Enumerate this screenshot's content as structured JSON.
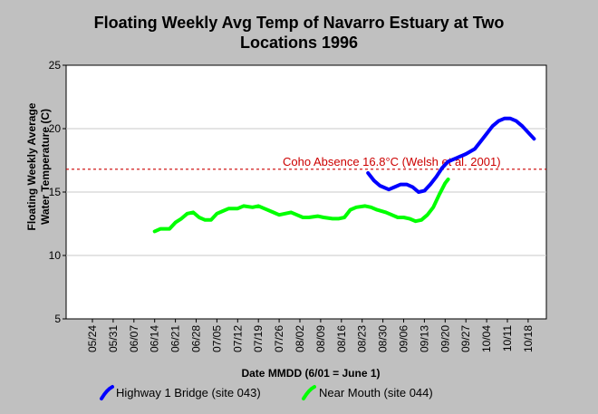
{
  "chart_data": {
    "type": "line",
    "title_lines": [
      "Floating Weekly Avg Temp of Navarro Estuary at Two",
      "Locations 1996"
    ],
    "xlabel": "Date MMDD (6/01 = June 1)",
    "ylabel_lines": [
      "Floating Weekly Average",
      "Water Temperature (C)"
    ],
    "ylim": [
      5,
      25
    ],
    "y_ticks": [
      5,
      10,
      15,
      20,
      25
    ],
    "x_tick_labels": [
      "05/24",
      "05/31",
      "06/07",
      "06/14",
      "06/21",
      "06/28",
      "07/05",
      "07/12",
      "07/19",
      "07/26",
      "08/02",
      "08/09",
      "08/16",
      "08/23",
      "08/30",
      "09/06",
      "09/13",
      "09/20",
      "09/27",
      "10/04",
      "10/11",
      "10/18"
    ],
    "threshold": {
      "value": 16.8,
      "label": "Coho Absence 16.8°C (Welsh et al. 2001)",
      "color": "#cc0000"
    },
    "series": [
      {
        "name": "Highway 1 Bridge (site 043)",
        "color": "#0000ff",
        "points": [
          [
            "08/25",
            16.5
          ],
          [
            "08/27",
            15.9
          ],
          [
            "08/29",
            15.5
          ],
          [
            "09/01",
            15.2
          ],
          [
            "09/03",
            15.4
          ],
          [
            "09/05",
            15.6
          ],
          [
            "09/07",
            15.6
          ],
          [
            "09/09",
            15.4
          ],
          [
            "09/11",
            15.0
          ],
          [
            "09/13",
            15.1
          ],
          [
            "09/15",
            15.6
          ],
          [
            "09/17",
            16.2
          ],
          [
            "09/19",
            16.9
          ],
          [
            "09/21",
            17.4
          ],
          [
            "09/24",
            17.7
          ],
          [
            "09/27",
            18.0
          ],
          [
            "09/30",
            18.4
          ],
          [
            "10/02",
            19.0
          ],
          [
            "10/04",
            19.6
          ],
          [
            "10/06",
            20.2
          ],
          [
            "10/08",
            20.6
          ],
          [
            "10/10",
            20.8
          ],
          [
            "10/12",
            20.8
          ],
          [
            "10/14",
            20.6
          ],
          [
            "10/16",
            20.2
          ],
          [
            "10/18",
            19.7
          ],
          [
            "10/20",
            19.2
          ]
        ]
      },
      {
        "name": "Near Mouth (site 044)",
        "color": "#00ff00",
        "points": [
          [
            "06/14",
            11.9
          ],
          [
            "06/16",
            12.1
          ],
          [
            "06/19",
            12.1
          ],
          [
            "06/21",
            12.6
          ],
          [
            "06/23",
            12.9
          ],
          [
            "06/25",
            13.3
          ],
          [
            "06/27",
            13.4
          ],
          [
            "06/29",
            13.0
          ],
          [
            "07/01",
            12.8
          ],
          [
            "07/03",
            12.8
          ],
          [
            "07/05",
            13.3
          ],
          [
            "07/07",
            13.5
          ],
          [
            "07/09",
            13.7
          ],
          [
            "07/12",
            13.7
          ],
          [
            "07/14",
            13.9
          ],
          [
            "07/17",
            13.8
          ],
          [
            "07/19",
            13.9
          ],
          [
            "07/21",
            13.7
          ],
          [
            "07/24",
            13.4
          ],
          [
            "07/26",
            13.2
          ],
          [
            "07/28",
            13.3
          ],
          [
            "07/30",
            13.4
          ],
          [
            "08/01",
            13.2
          ],
          [
            "08/03",
            13.0
          ],
          [
            "08/05",
            13.0
          ],
          [
            "08/08",
            13.1
          ],
          [
            "08/10",
            13.0
          ],
          [
            "08/13",
            12.9
          ],
          [
            "08/15",
            12.9
          ],
          [
            "08/17",
            13.0
          ],
          [
            "08/19",
            13.6
          ],
          [
            "08/21",
            13.8
          ],
          [
            "08/24",
            13.9
          ],
          [
            "08/26",
            13.8
          ],
          [
            "08/28",
            13.6
          ],
          [
            "08/31",
            13.4
          ],
          [
            "09/02",
            13.2
          ],
          [
            "09/04",
            13.0
          ],
          [
            "09/06",
            13.0
          ],
          [
            "09/08",
            12.9
          ],
          [
            "09/10",
            12.7
          ],
          [
            "09/12",
            12.8
          ],
          [
            "09/14",
            13.2
          ],
          [
            "09/16",
            13.8
          ],
          [
            "09/18",
            14.8
          ],
          [
            "09/20",
            15.7
          ],
          [
            "09/21",
            16.0
          ]
        ]
      }
    ]
  }
}
